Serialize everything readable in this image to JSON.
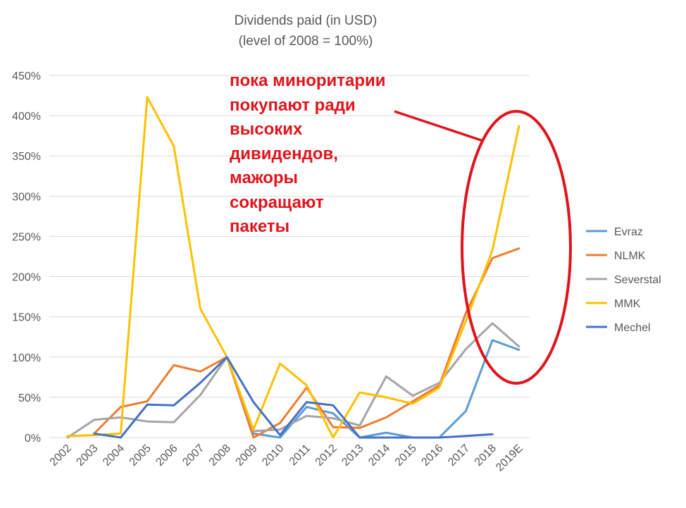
{
  "chart_data": {
    "type": "line",
    "title": "Dividends paid (in USD)",
    "subtitle": "(level of 2008 = 100%)",
    "xlabel": "",
    "ylabel": "",
    "categories": [
      "2002",
      "2003",
      "2004",
      "2005",
      "2006",
      "2007",
      "2008",
      "2009",
      "2010",
      "2011",
      "2012",
      "2013",
      "2014",
      "2015",
      "2016",
      "2017",
      "2018",
      "2019E"
    ],
    "ylim": [
      0,
      450
    ],
    "yticks": [
      0,
      50,
      100,
      150,
      200,
      250,
      300,
      350,
      400,
      450
    ],
    "ytick_labels": [
      "0%",
      "50%",
      "100%",
      "150%",
      "200%",
      "250%",
      "300%",
      "350%",
      "400%",
      "450%"
    ],
    "grid": true,
    "legend_position": "right",
    "series": [
      {
        "name": "Evraz",
        "color": "#5b9bd5",
        "values": [
          null,
          null,
          null,
          null,
          null,
          null,
          100,
          5,
          0,
          38,
          30,
          0,
          6,
          0,
          0,
          33,
          121,
          109
        ]
      },
      {
        "name": "NLMK",
        "color": "#ed7d31",
        "values": [
          null,
          5,
          38,
          45,
          90,
          82,
          100,
          0,
          18,
          62,
          13,
          12,
          25,
          45,
          65,
          155,
          223,
          235
        ]
      },
      {
        "name": "Severstal",
        "color": "#a5a5a5",
        "values": [
          0,
          22,
          25,
          20,
          19,
          53,
          100,
          8,
          10,
          27,
          24,
          15,
          76,
          52,
          68,
          110,
          142,
          113
        ]
      },
      {
        "name": "MMK",
        "color": "#ffc000",
        "values": [
          2,
          3,
          5,
          423,
          362,
          160,
          100,
          10,
          92,
          65,
          0,
          56,
          50,
          42,
          62,
          145,
          233,
          387
        ]
      },
      {
        "name": "Mechel",
        "color": "#4472c4",
        "values": [
          null,
          5,
          0,
          41,
          40,
          68,
          100,
          44,
          3,
          44,
          40,
          0,
          0,
          0,
          0,
          2,
          4,
          null
        ]
      }
    ],
    "annotation": "пока миноритарии\nпокупают ради\nвысоких\nдивидендов,\nмажоры\nсокращают\nпакеты",
    "highlight_color": "#e0141c"
  }
}
